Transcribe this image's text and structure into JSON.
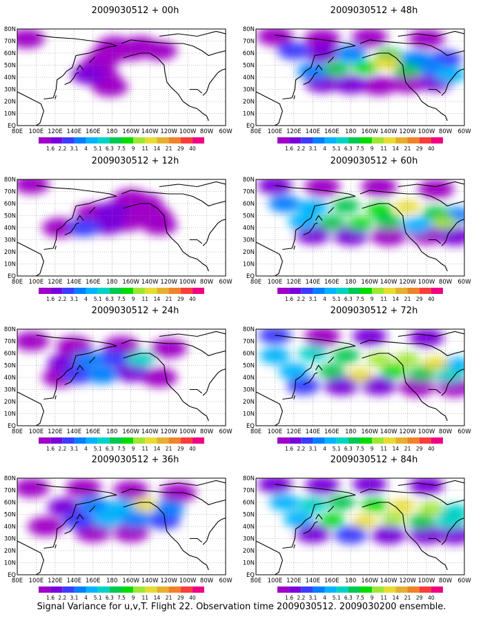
{
  "figure": {
    "caption": "Signal Variance for u,v,T. Flight 22. Observation time 2009030512. 2009030200 ensemble."
  },
  "map": {
    "lon_labels": [
      "80E",
      "100E",
      "120E",
      "140E",
      "160E",
      "180",
      "160W",
      "140W",
      "120W",
      "100W",
      "80W",
      "60W"
    ],
    "lat_labels": [
      "EQ",
      "10N",
      "20N",
      "30N",
      "40N",
      "50N",
      "60N",
      "70N",
      "80N"
    ],
    "land_color": "#000000",
    "grid_style": "dotted",
    "panel_title_prefix": "2009030512 + "
  },
  "colorbar": {
    "labels": [
      "1.6",
      "2.2",
      "3.1",
      "4",
      "5.1",
      "6.3",
      "7.5",
      "9",
      "11",
      "14",
      "21",
      "29",
      "40"
    ],
    "colors": [
      "#a000c8",
      "#7a00dc",
      "#3c3cff",
      "#0080ff",
      "#00b4ff",
      "#00d2c8",
      "#00c850",
      "#00dc00",
      "#a0e632",
      "#e6dc32",
      "#e6af2d",
      "#f08228",
      "#fa3c3c",
      "#f00082"
    ]
  },
  "chart_data": [
    {
      "type": "heatmap",
      "title": "2009030512 + 00h",
      "lead_time": "00h",
      "cells": [
        {
          "lon": 190,
          "lat": 63,
          "level": 0
        },
        {
          "lon": 200,
          "lat": 62,
          "level": 0
        },
        {
          "lon": 175,
          "lat": 58,
          "level": 0
        },
        {
          "lon": 165,
          "lat": 50,
          "level": 0
        },
        {
          "lon": 155,
          "lat": 42,
          "level": 1
        },
        {
          "lon": 170,
          "lat": 40,
          "level": 0
        },
        {
          "lon": 178,
          "lat": 32,
          "level": 0
        },
        {
          "lon": 183,
          "lat": 66,
          "level": 0
        },
        {
          "lon": 210,
          "lat": 66,
          "level": 0
        },
        {
          "lon": 230,
          "lat": 62,
          "level": 0
        },
        {
          "lon": 90,
          "lat": 72,
          "level": 0
        }
      ]
    },
    {
      "type": "heatmap",
      "title": "2009030512 + 48h",
      "lead_time": "48h",
      "cells": [
        {
          "lon": 100,
          "lat": 74,
          "level": 0
        },
        {
          "lon": 150,
          "lat": 72,
          "level": 0
        },
        {
          "lon": 200,
          "lat": 73,
          "level": 0
        },
        {
          "lon": 260,
          "lat": 72,
          "level": 0
        },
        {
          "lon": 120,
          "lat": 62,
          "level": 2
        },
        {
          "lon": 150,
          "lat": 60,
          "level": 1
        },
        {
          "lon": 180,
          "lat": 60,
          "level": 3
        },
        {
          "lon": 220,
          "lat": 58,
          "level": 6
        },
        {
          "lon": 250,
          "lat": 55,
          "level": 3
        },
        {
          "lon": 280,
          "lat": 55,
          "level": 2
        },
        {
          "lon": 140,
          "lat": 45,
          "level": 3
        },
        {
          "lon": 165,
          "lat": 47,
          "level": 6
        },
        {
          "lon": 195,
          "lat": 48,
          "level": 7
        },
        {
          "lon": 218,
          "lat": 52,
          "level": 9
        },
        {
          "lon": 240,
          "lat": 46,
          "level": 6
        },
        {
          "lon": 265,
          "lat": 48,
          "level": 3
        },
        {
          "lon": 285,
          "lat": 42,
          "level": 4
        },
        {
          "lon": 150,
          "lat": 35,
          "level": 1
        },
        {
          "lon": 180,
          "lat": 34,
          "level": 1
        },
        {
          "lon": 210,
          "lat": 33,
          "level": 0
        },
        {
          "lon": 240,
          "lat": 35,
          "level": 0
        },
        {
          "lon": 270,
          "lat": 36,
          "level": 1
        }
      ]
    },
    {
      "type": "heatmap",
      "title": "2009030512 + 12h",
      "lead_time": "12h",
      "cells": [
        {
          "lon": 95,
          "lat": 76,
          "level": 0
        },
        {
          "lon": 200,
          "lat": 64,
          "level": 0
        },
        {
          "lon": 215,
          "lat": 60,
          "level": 0
        },
        {
          "lon": 160,
          "lat": 52,
          "level": 0
        },
        {
          "lon": 180,
          "lat": 54,
          "level": 1
        },
        {
          "lon": 205,
          "lat": 56,
          "level": 0
        },
        {
          "lon": 150,
          "lat": 40,
          "level": 2
        },
        {
          "lon": 175,
          "lat": 42,
          "level": 1
        },
        {
          "lon": 195,
          "lat": 45,
          "level": 0
        },
        {
          "lon": 225,
          "lat": 50,
          "level": 0
        },
        {
          "lon": 230,
          "lat": 42,
          "level": 0
        },
        {
          "lon": 125,
          "lat": 40,
          "level": 0
        }
      ]
    },
    {
      "type": "heatmap",
      "title": "2009030512 + 60h",
      "lead_time": "60h",
      "cells": [
        {
          "lon": 100,
          "lat": 75,
          "level": 1
        },
        {
          "lon": 150,
          "lat": 74,
          "level": 0
        },
        {
          "lon": 210,
          "lat": 74,
          "level": 0
        },
        {
          "lon": 270,
          "lat": 72,
          "level": 0
        },
        {
          "lon": 110,
          "lat": 60,
          "level": 3
        },
        {
          "lon": 140,
          "lat": 57,
          "level": 4
        },
        {
          "lon": 175,
          "lat": 58,
          "level": 6
        },
        {
          "lon": 210,
          "lat": 55,
          "level": 7
        },
        {
          "lon": 240,
          "lat": 57,
          "level": 9
        },
        {
          "lon": 270,
          "lat": 52,
          "level": 6
        },
        {
          "lon": 290,
          "lat": 50,
          "level": 3
        },
        {
          "lon": 130,
          "lat": 45,
          "level": 4
        },
        {
          "lon": 160,
          "lat": 44,
          "level": 6
        },
        {
          "lon": 190,
          "lat": 43,
          "level": 7
        },
        {
          "lon": 220,
          "lat": 45,
          "level": 6
        },
        {
          "lon": 250,
          "lat": 42,
          "level": 4
        },
        {
          "lon": 280,
          "lat": 44,
          "level": 8
        },
        {
          "lon": 140,
          "lat": 34,
          "level": 1
        },
        {
          "lon": 180,
          "lat": 33,
          "level": 1
        },
        {
          "lon": 220,
          "lat": 33,
          "level": 0
        },
        {
          "lon": 260,
          "lat": 34,
          "level": 0
        },
        {
          "lon": 290,
          "lat": 33,
          "level": 1
        }
      ]
    },
    {
      "type": "heatmap",
      "title": "2009030512 + 24h",
      "lead_time": "24h",
      "cells": [
        {
          "lon": 95,
          "lat": 70,
          "level": 0
        },
        {
          "lon": 140,
          "lat": 66,
          "level": 0
        },
        {
          "lon": 190,
          "lat": 66,
          "level": 0
        },
        {
          "lon": 240,
          "lat": 64,
          "level": 0
        },
        {
          "lon": 130,
          "lat": 52,
          "level": 1
        },
        {
          "lon": 155,
          "lat": 55,
          "level": 3
        },
        {
          "lon": 180,
          "lat": 56,
          "level": 2
        },
        {
          "lon": 210,
          "lat": 55,
          "level": 5
        },
        {
          "lon": 145,
          "lat": 42,
          "level": 2
        },
        {
          "lon": 170,
          "lat": 42,
          "level": 3
        },
        {
          "lon": 200,
          "lat": 44,
          "level": 1
        },
        {
          "lon": 125,
          "lat": 40,
          "level": 0
        },
        {
          "lon": 230,
          "lat": 40,
          "level": 0
        }
      ]
    },
    {
      "type": "heatmap",
      "title": "2009030512 + 72h",
      "lead_time": "72h",
      "cells": [
        {
          "lon": 100,
          "lat": 75,
          "level": 2
        },
        {
          "lon": 150,
          "lat": 74,
          "level": 0
        },
        {
          "lon": 200,
          "lat": 74,
          "level": 1
        },
        {
          "lon": 260,
          "lat": 73,
          "level": 1
        },
        {
          "lon": 100,
          "lat": 58,
          "level": 4
        },
        {
          "lon": 140,
          "lat": 60,
          "level": 5
        },
        {
          "lon": 175,
          "lat": 58,
          "level": 6
        },
        {
          "lon": 210,
          "lat": 55,
          "level": 8
        },
        {
          "lon": 240,
          "lat": 55,
          "level": 8
        },
        {
          "lon": 270,
          "lat": 52,
          "level": 9
        },
        {
          "lon": 290,
          "lat": 50,
          "level": 4
        },
        {
          "lon": 120,
          "lat": 45,
          "level": 4
        },
        {
          "lon": 160,
          "lat": 45,
          "level": 6
        },
        {
          "lon": 190,
          "lat": 42,
          "level": 9
        },
        {
          "lon": 225,
          "lat": 45,
          "level": 7
        },
        {
          "lon": 255,
          "lat": 43,
          "level": 6
        },
        {
          "lon": 285,
          "lat": 42,
          "level": 5
        },
        {
          "lon": 130,
          "lat": 33,
          "level": 2
        },
        {
          "lon": 170,
          "lat": 33,
          "level": 1
        },
        {
          "lon": 210,
          "lat": 33,
          "level": 1
        },
        {
          "lon": 250,
          "lat": 32,
          "level": 0
        },
        {
          "lon": 290,
          "lat": 32,
          "level": 0
        }
      ]
    },
    {
      "type": "heatmap",
      "title": "2009030512 + 36h",
      "lead_time": "36h",
      "cells": [
        {
          "lon": 95,
          "lat": 72,
          "level": 0
        },
        {
          "lon": 150,
          "lat": 72,
          "level": 0
        },
        {
          "lon": 200,
          "lat": 70,
          "level": 0
        },
        {
          "lon": 250,
          "lat": 68,
          "level": 0
        },
        {
          "lon": 130,
          "lat": 56,
          "level": 1
        },
        {
          "lon": 160,
          "lat": 58,
          "level": 3
        },
        {
          "lon": 190,
          "lat": 56,
          "level": 4
        },
        {
          "lon": 215,
          "lat": 58,
          "level": 9
        },
        {
          "lon": 240,
          "lat": 55,
          "level": 3
        },
        {
          "lon": 145,
          "lat": 45,
          "level": 2
        },
        {
          "lon": 175,
          "lat": 46,
          "level": 4
        },
        {
          "lon": 205,
          "lat": 46,
          "level": 3
        },
        {
          "lon": 235,
          "lat": 45,
          "level": 2
        },
        {
          "lon": 160,
          "lat": 35,
          "level": 0
        },
        {
          "lon": 200,
          "lat": 35,
          "level": 0
        },
        {
          "lon": 110,
          "lat": 40,
          "level": 0
        }
      ]
    },
    {
      "type": "heatmap",
      "title": "2009030512 + 84h",
      "lead_time": "84h",
      "cells": [
        {
          "lon": 100,
          "lat": 75,
          "level": 1
        },
        {
          "lon": 150,
          "lat": 74,
          "level": 1
        },
        {
          "lon": 200,
          "lat": 75,
          "level": 1
        },
        {
          "lon": 260,
          "lat": 74,
          "level": 1
        },
        {
          "lon": 110,
          "lat": 60,
          "level": 4
        },
        {
          "lon": 140,
          "lat": 58,
          "level": 5
        },
        {
          "lon": 170,
          "lat": 60,
          "level": 6
        },
        {
          "lon": 205,
          "lat": 58,
          "level": 7
        },
        {
          "lon": 235,
          "lat": 57,
          "level": 9
        },
        {
          "lon": 265,
          "lat": 55,
          "level": 8
        },
        {
          "lon": 290,
          "lat": 52,
          "level": 5
        },
        {
          "lon": 125,
          "lat": 46,
          "level": 4
        },
        {
          "lon": 160,
          "lat": 45,
          "level": 7
        },
        {
          "lon": 195,
          "lat": 44,
          "level": 9
        },
        {
          "lon": 225,
          "lat": 46,
          "level": 8
        },
        {
          "lon": 255,
          "lat": 44,
          "level": 6
        },
        {
          "lon": 285,
          "lat": 44,
          "level": 5
        },
        {
          "lon": 140,
          "lat": 34,
          "level": 1
        },
        {
          "lon": 180,
          "lat": 33,
          "level": 2
        },
        {
          "lon": 220,
          "lat": 33,
          "level": 1
        },
        {
          "lon": 260,
          "lat": 33,
          "level": 1
        },
        {
          "lon": 290,
          "lat": 33,
          "level": 1
        }
      ]
    }
  ]
}
